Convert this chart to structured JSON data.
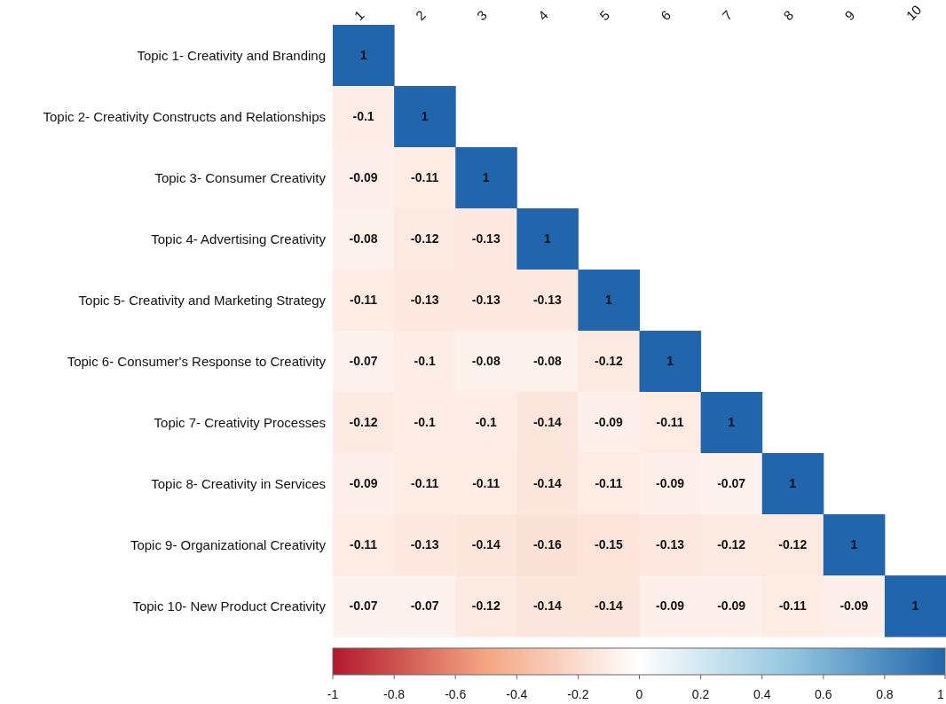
{
  "chart_data": {
    "type": "heatmap",
    "categories": [
      "1",
      "2",
      "3",
      "4",
      "5",
      "6",
      "7",
      "8",
      "9",
      "10"
    ],
    "y_categories": [
      "Topic 1- Creativity and Branding",
      "Topic 2- Creativity Constructs and Relationships",
      "Topic 3- Consumer Creativity",
      "Topic 4- Advertising Creativity",
      "Topic 5- Creativity and Marketing Strategy",
      "Topic 6- Consumer's Response to Creativity",
      "Topic 7- Creativity Processes",
      "Topic 8- Creativity in Services",
      "Topic 9- Organizational Creativity",
      "Topic 10- New Product Creativity"
    ],
    "cells": [
      [
        1,
        null,
        null,
        null,
        null,
        null,
        null,
        null,
        null,
        null
      ],
      [
        -0.1,
        1,
        null,
        null,
        null,
        null,
        null,
        null,
        null,
        null
      ],
      [
        -0.09,
        -0.11,
        1,
        null,
        null,
        null,
        null,
        null,
        null,
        null
      ],
      [
        -0.08,
        -0.12,
        -0.13,
        1,
        null,
        null,
        null,
        null,
        null,
        null
      ],
      [
        -0.11,
        -0.13,
        -0.13,
        -0.13,
        1,
        null,
        null,
        null,
        null,
        null
      ],
      [
        -0.07,
        -0.1,
        -0.08,
        -0.08,
        -0.12,
        1,
        null,
        null,
        null,
        null
      ],
      [
        -0.12,
        -0.1,
        -0.1,
        -0.14,
        -0.09,
        -0.11,
        1,
        null,
        null,
        null
      ],
      [
        -0.09,
        -0.11,
        -0.11,
        -0.14,
        -0.11,
        -0.09,
        -0.07,
        1,
        null,
        null
      ],
      [
        -0.11,
        -0.13,
        -0.14,
        -0.16,
        -0.15,
        -0.13,
        -0.12,
        -0.12,
        1,
        null
      ],
      [
        -0.07,
        -0.07,
        -0.12,
        -0.14,
        -0.14,
        -0.09,
        -0.09,
        -0.11,
        -0.09,
        1
      ]
    ],
    "data_labels": true,
    "clim": [
      -1,
      1
    ],
    "cticks": [
      -1,
      -0.8,
      -0.6,
      -0.4,
      -0.2,
      0,
      0.2,
      0.4,
      0.6,
      0.8,
      1
    ]
  }
}
